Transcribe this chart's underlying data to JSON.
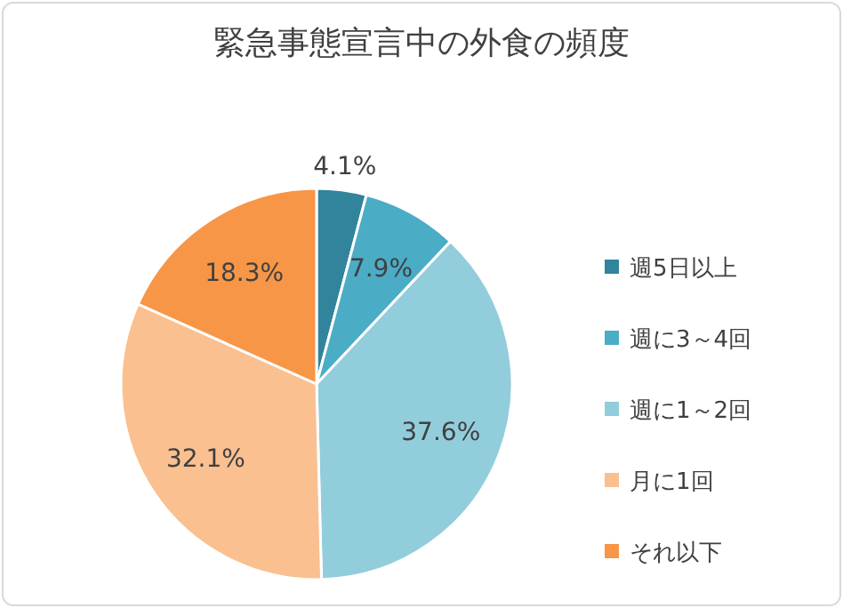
{
  "chart_data": {
    "type": "pie",
    "title": "緊急事態宣言中の外食の頻度",
    "categories": [
      "週5日以上",
      "週に3～4回",
      "週に1～2回",
      "月に1回",
      "それ以下"
    ],
    "values": [
      4.1,
      7.9,
      37.6,
      32.1,
      18.3
    ],
    "colors": [
      "#31849b",
      "#4bacc6",
      "#92cddc",
      "#fac090",
      "#f79646"
    ],
    "value_labels": [
      "4.1%",
      "7.9%",
      "37.6%",
      "32.1%",
      "18.3%"
    ],
    "legend": "right"
  }
}
